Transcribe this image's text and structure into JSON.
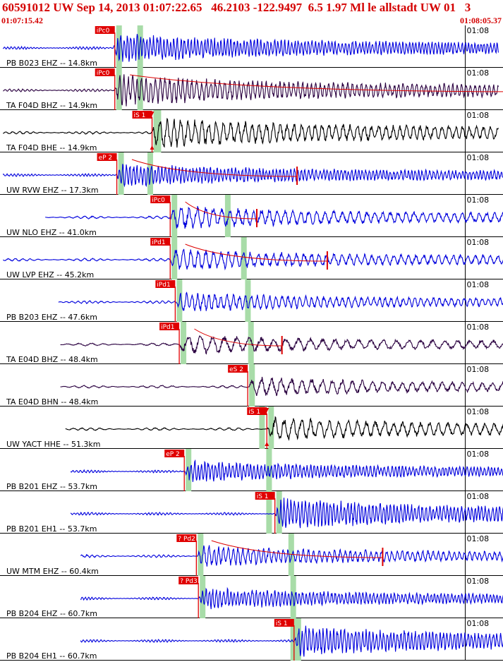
{
  "header": {
    "title": "60591012 UW Sep 14, 2013 01:07:22.65   46.2103 -122.9497  6.5 1.97 Ml le allstadt UW 01   3",
    "start_time": "01:07:15.42",
    "end_time": "01:08:05.37"
  },
  "colors": {
    "header_text": "#d40000",
    "pick_box": "#e00000",
    "pick_text": "#ffffff",
    "green_band": "#a8dca8",
    "blue_trace": "#0000dd",
    "black_trace": "#000000",
    "purple_trace": "#2a0040",
    "red_curve": "#dd0000"
  },
  "chart_data": {
    "type": "line",
    "title": "60591012 UW Sep 14, 2013 01:07:22.65   46.2103 -122.9497  6.5 1.97 Ml le allstadt UW 01   3",
    "x_range": [
      "01:07:15.42",
      "01:08:05.37"
    ],
    "x_tick_label": "01:08",
    "series": [
      {
        "name": "PB B023 EHZ -- 14.8km",
        "tick": "01:08",
        "pick": "iPc0",
        "pick_sec": 11.4,
        "s_sec": 13.5,
        "color": "blue",
        "onset": 11.2,
        "amp": 0.75,
        "end": 49.5,
        "period": 0.33
      },
      {
        "name": "TA F04D BHZ -- 14.9km",
        "tick": "01:08",
        "pick": "iPc0",
        "pick_sec": 11.4,
        "s_sec": 13.5,
        "color": "purple",
        "onset": 11.3,
        "amp": 0.8,
        "end": 49.5,
        "period": 0.45,
        "coda": true,
        "coda_end": 53
      },
      {
        "name": "TA F04D BHE -- 14.9km",
        "tick": "01:08",
        "pick": "iS 1",
        "pick_sec": 15.1,
        "s_sec": 15.3,
        "color": "black",
        "onset": 15.0,
        "amp": 0.8,
        "end": 49.5,
        "period": 0.7,
        "triangle": true
      },
      {
        "name": "UW RVW EHZ -- 17.3km",
        "tick": "01:08",
        "pick": "eP 2",
        "pick_sec": 11.6,
        "s_sec": 14.5,
        "color": "blue",
        "onset": 11.5,
        "amp": 0.6,
        "end": 50,
        "period": 0.35,
        "coda": true,
        "coda_end": 29.5
      },
      {
        "name": "UW NLO EHZ -- 41.0km",
        "tick": "01:08",
        "pick": "iPc0",
        "pick_sec": 16.9,
        "s_sec": 22.2,
        "color": "blue",
        "onset": 16.8,
        "amp": 0.6,
        "end": 54,
        "period": 0.8,
        "coda": true,
        "coda_end": 25.5,
        "pre_start": 4.5
      },
      {
        "name": "UW LVP EHZ -- 45.2km",
        "tick": "01:08",
        "pick": "iPd1",
        "pick_sec": 16.9,
        "s_sec": 23.8,
        "color": "blue",
        "onset": 16.8,
        "amp": 0.55,
        "end": 54,
        "period": 0.75,
        "coda": true,
        "coda_end": 32.5
      },
      {
        "name": "PB B203 EHZ -- 47.6km",
        "tick": "01:08",
        "pick": "iPd1",
        "pick_sec": 17.4,
        "s_sec": 24.2,
        "color": "blue",
        "onset": 17.4,
        "amp": 0.5,
        "end": 55,
        "period": 0.6,
        "pre_start": 5.8
      },
      {
        "name": "TA E04D BHZ -- 48.4km",
        "tick": "01:08",
        "pick": "iPd1",
        "pick_sec": 17.8,
        "s_sec": 24.5,
        "color": "purple",
        "onset": 17.7,
        "amp": 0.5,
        "end": 55,
        "period": 1.2,
        "coda": true,
        "coda_end": 28,
        "pre_start": 6.0
      },
      {
        "name": "TA E04D BHN -- 48.4km",
        "tick": "01:08",
        "pick": "eS 2",
        "pick_sec": 24.6,
        "s_sec": 24.6,
        "color": "purple",
        "onset": 24.6,
        "amp": 0.5,
        "end": 55,
        "period": 1.0,
        "pre_start": 6.0
      },
      {
        "name": "UW YACT HHE -- 51.3km",
        "tick": "01:08",
        "pick": "iS 1",
        "pick_sec": 26.5,
        "s_sec": 25.6,
        "color": "black",
        "onset": 26.5,
        "amp": 0.6,
        "end": 55.5,
        "period": 0.9,
        "pre_start": 6.5,
        "triangle": true
      },
      {
        "name": "PB B201 EHZ -- 53.7km",
        "tick": "01:08",
        "pick": "eP 2",
        "pick_sec": 18.3,
        "s_sec": 26.3,
        "color": "blue",
        "onset": 18.3,
        "amp": 0.55,
        "end": 56,
        "period": 0.35,
        "pre_start": 7.0
      },
      {
        "name": "PB B201 EH1 -- 53.7km",
        "tick": "01:08",
        "pick": "iS 1",
        "pick_sec": 27.3,
        "s_sec": 26.3,
        "color": "blue",
        "onset": 27.3,
        "amp": 0.8,
        "end": 56,
        "period": 0.35,
        "pre_start": 7.0
      },
      {
        "name": "UW MTM EHZ -- 60.4km",
        "tick": "01:08",
        "pick": "? Pd2",
        "pick_sec": 19.5,
        "s_sec": 28.5,
        "color": "blue",
        "onset": 19.5,
        "amp": 0.55,
        "end": 57,
        "period": 0.5,
        "coda": true,
        "coda_end": 38,
        "pre_start": 8.0
      },
      {
        "name": "PB B204 EHZ -- 60.7km",
        "tick": "01:08",
        "pick": "? Pd3",
        "pick_sec": 19.7,
        "s_sec": 28.7,
        "color": "blue",
        "onset": 19.7,
        "amp": 0.55,
        "end": 57,
        "period": 0.35,
        "pre_start": 8.0
      },
      {
        "name": "PB B204 EH1 -- 60.7km",
        "tick": "01:08",
        "pick": "iS 1",
        "pick_sec": 29.2,
        "s_sec": 28.7,
        "color": "blue",
        "onset": 29.2,
        "amp": 0.8,
        "end": 57,
        "period": 0.35,
        "pre_start": 8.0
      }
    ]
  }
}
